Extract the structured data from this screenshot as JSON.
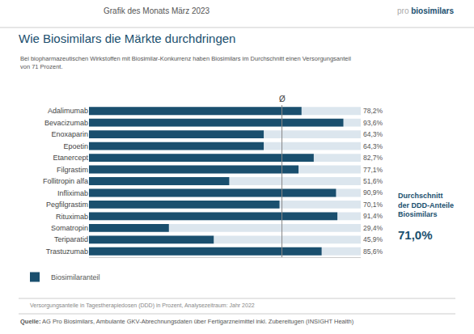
{
  "chart_data": {
    "type": "bar",
    "orientation": "horizontal",
    "header": "Grafik des Monats März 2023",
    "brand": "pro biosimilars",
    "title": "Wie Biosimilars die Märkte durchdringen",
    "subtitle": "Bei biopharmazeutischen Wirkstoffen mit Biosimilar-Konkurrenz haben Biosimilars im Durchschnitt einen Versorgungsanteil\nvon 71 Prozent.",
    "categories": [
      "Adalimumab",
      "Bevacizumab",
      "Enoxaparin",
      "Epoetin",
      "Etanercept",
      "Filgrastim",
      "Follitropin alfa",
      "Infliximab",
      "Pegfilgrastim",
      "Rituximab",
      "Somatropin",
      "Teriparatid",
      "Trastuzumab"
    ],
    "series": [
      {
        "name": "Biosimilaranteil",
        "color": "#1a4f6e",
        "values": [
          78.2,
          93.6,
          64.3,
          64.3,
          82.7,
          77.1,
          51.6,
          90.9,
          70.1,
          91.4,
          29.4,
          45.9,
          85.6
        ],
        "value_labels": [
          "78,2%",
          "93,6%",
          "64,3%",
          "64,3%",
          "82,7%",
          "77,1%",
          "51,6%",
          "90,9%",
          "70,1%",
          "91,4%",
          "29,4%",
          "45,9%",
          "85,6%"
        ]
      }
    ],
    "reference_line": {
      "value": 71.0,
      "label": "Ø"
    },
    "average_box": {
      "lines": [
        "Durchschnitt",
        "der DDD-Anteile",
        "Biosimilars"
      ],
      "value": 71.0,
      "value_label": "71,0%"
    },
    "footnote": "Versorgungsanteile in Tagestherapiedosen (DDD) in Prozent, Analysezeitraum: Jahr 2022",
    "source": {
      "label": "Quelle:",
      "text": "AG Pro Biosimilars, Ambulante GKV-Abrechnungsdaten über Fertigarzneimittel inkl. Zubereitugen (INSIGHT Health)"
    },
    "xlim": [
      0,
      100
    ],
    "xticks": [],
    "tick_labels": "y",
    "data_labels": true,
    "grid": false,
    "legend": "bottom left"
  }
}
